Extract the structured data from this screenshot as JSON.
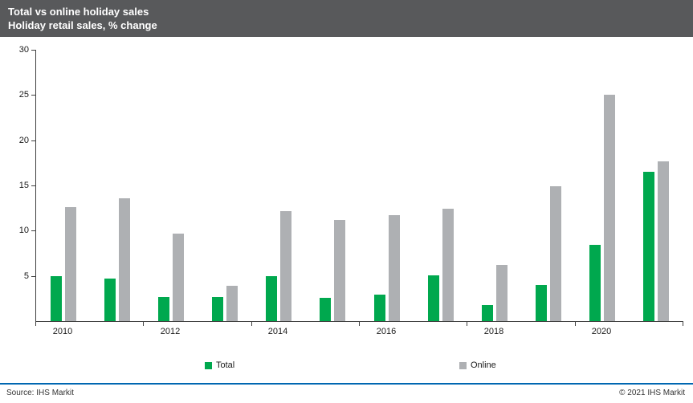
{
  "header": {
    "title": "Total vs online holiday sales",
    "subtitle": "Holiday retail sales, % change"
  },
  "legend": [
    {
      "label": "Total",
      "color": "#00A84E"
    },
    {
      "label": "Online",
      "color": "#AEB0B3"
    }
  ],
  "footer": {
    "source": "Source:  IHS Markit",
    "copyright": "© 2021  IHS Markit"
  },
  "colors": {
    "header_bg": "#58595B",
    "total_bar": "#00A84E",
    "online_bar": "#AEB0B3",
    "footer_line": "#0067B1",
    "axis": "#404040"
  },
  "chart_data": {
    "type": "bar",
    "title": "Total vs online holiday sales",
    "subtitle": "Holiday retail sales, % change",
    "categories": [
      2010,
      2011,
      2012,
      2013,
      2014,
      2015,
      2016,
      2017,
      2018,
      2019,
      2020,
      2021
    ],
    "x_tick_labels": [
      "2010",
      "2012",
      "2014",
      "2016",
      "2018",
      "2020"
    ],
    "series": [
      {
        "name": "Total",
        "color": "#00A84E",
        "values": [
          5.0,
          4.7,
          2.7,
          2.7,
          5.0,
          2.6,
          2.9,
          5.1,
          1.8,
          4.0,
          8.4,
          16.5
        ]
      },
      {
        "name": "Online",
        "color": "#AEB0B3",
        "values": [
          12.6,
          13.6,
          9.7,
          3.9,
          12.2,
          11.2,
          11.7,
          12.4,
          6.2,
          14.9,
          25.0,
          17.7
        ]
      }
    ],
    "ylabel": "% change",
    "ylim": [
      0,
      30
    ],
    "yticks": [
      5,
      10,
      15,
      20,
      25,
      30
    ],
    "grid": false,
    "legend_position": "bottom"
  }
}
